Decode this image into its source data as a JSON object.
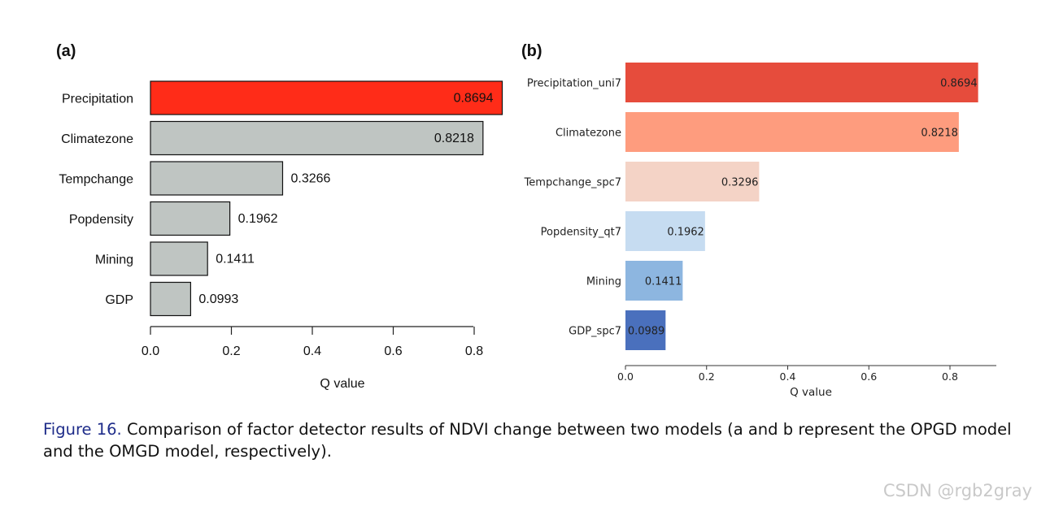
{
  "chart_data": [
    {
      "type": "bar",
      "orientation": "horizontal",
      "panel_label": "(a)",
      "categories": [
        "Precipitation",
        "Climatezone",
        "Tempchange",
        "Popdensity",
        "Mining",
        "GDP"
      ],
      "values": [
        0.8694,
        0.8218,
        0.3266,
        0.1962,
        0.1411,
        0.0993
      ],
      "value_labels": [
        "0.8694",
        "0.8218",
        "0.3266",
        "0.1962",
        "0.1411",
        "0.0993"
      ],
      "bar_colors": [
        "#ff2c18",
        "#bfc5c2",
        "#bfc5c2",
        "#bfc5c2",
        "#bfc5c2",
        "#bfc5c2"
      ],
      "xlabel": "Q value",
      "xticks": [
        "0.0",
        "0.2",
        "0.4",
        "0.6",
        "0.8"
      ],
      "xlim": [
        0,
        0.87
      ]
    },
    {
      "type": "bar",
      "orientation": "horizontal",
      "panel_label": "(b)",
      "categories": [
        "Precipitation_uni7",
        "Climatezone",
        "Tempchange_spc7",
        "Popdensity_qt7",
        "Mining",
        "GDP_spc7"
      ],
      "values": [
        0.8694,
        0.8218,
        0.3296,
        0.1962,
        0.1411,
        0.0989
      ],
      "value_labels": [
        "0.8694",
        "0.8218",
        "0.3296",
        "0.1962",
        "0.1411",
        "0.0989"
      ],
      "bar_colors": [
        "#e64c3c",
        "#fe9c7e",
        "#f4d3c6",
        "#c6dcf1",
        "#8db6e0",
        "#4a70bd"
      ],
      "xlabel": "Q value",
      "xticks": [
        "0.0",
        "0.2",
        "0.4",
        "0.6",
        "0.8"
      ],
      "xlim": [
        0,
        0.915
      ]
    }
  ],
  "caption": {
    "label": "Figure 16.",
    "text": " Comparison of factor detector results of NDVI change between two models (a and b represent the OPGD model and the OMGD model, respectively)."
  },
  "watermark": "CSDN @rgb2gray"
}
